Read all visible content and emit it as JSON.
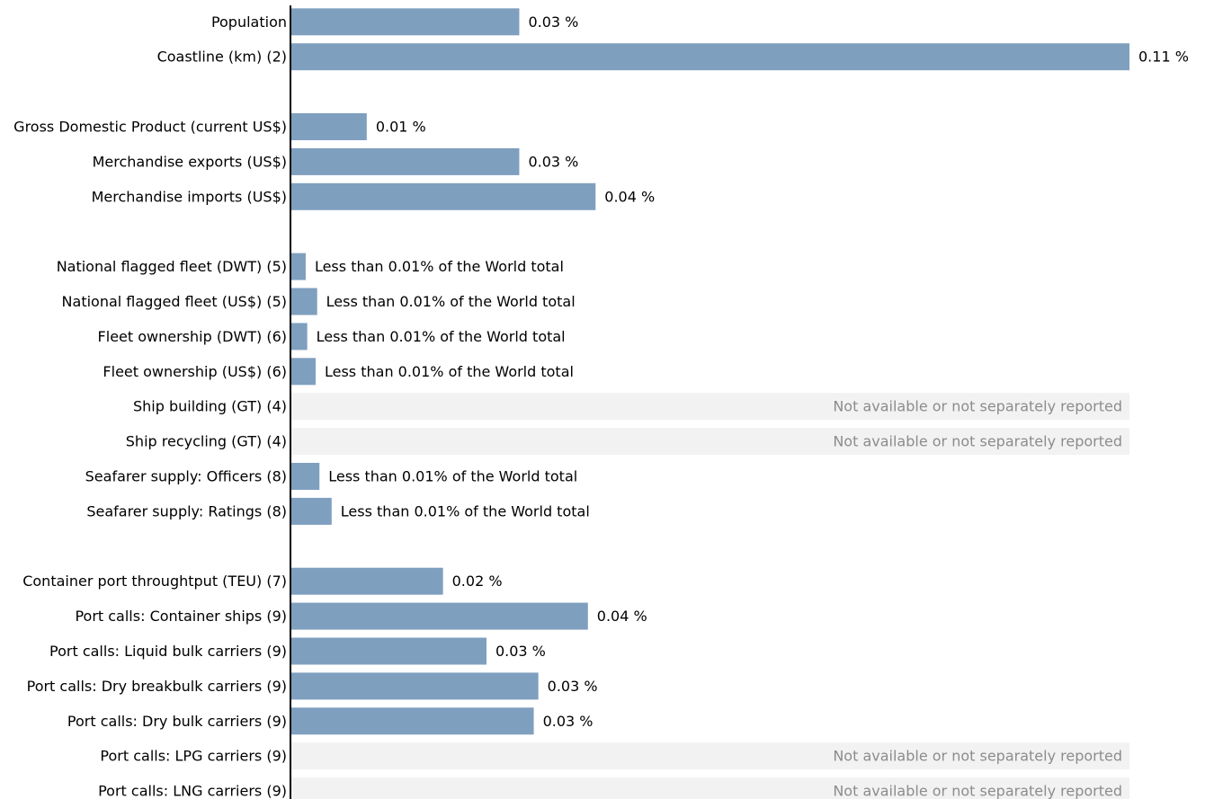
{
  "chart_data": {
    "type": "bar",
    "orientation": "horizontal",
    "title": "",
    "xlabel": "",
    "ylabel": "",
    "xlim": [
      0,
      0.11
    ],
    "grid": false,
    "legend": "none",
    "colors": {
      "bar": "#7f9fbf",
      "na_band": "#f2f2f2",
      "na_text": "#8c8c8c",
      "axis": "#000000"
    },
    "rows": [
      {
        "category": "Population",
        "value": 0.03,
        "label": "0.03 %",
        "status": "value",
        "group": 0
      },
      {
        "category": "Coastline (km) (2)",
        "value": 0.11,
        "label": "0.11 %",
        "status": "value",
        "group": 0
      },
      {
        "category": "Gross Domestic Product (current US$)",
        "value": 0.01,
        "label": "0.01 %",
        "status": "value",
        "group": 1
      },
      {
        "category": "Merchandise exports (US$)",
        "value": 0.03,
        "label": "0.03 %",
        "status": "value",
        "group": 1
      },
      {
        "category": "Merchandise imports (US$)",
        "value": 0.04,
        "label": "0.04 %",
        "status": "value",
        "group": 1
      },
      {
        "category": "National flagged fleet (DWT) (5)",
        "value": 0.002,
        "label": "Less than 0.01% of the World total",
        "status": "lt",
        "group": 2
      },
      {
        "category": "National flagged fleet (US$) (5)",
        "value": 0.0035,
        "label": "Less than 0.01% of the World total",
        "status": "lt",
        "group": 2
      },
      {
        "category": "Fleet ownership (DWT) (6)",
        "value": 0.0022,
        "label": "Less than 0.01% of the World total",
        "status": "lt",
        "group": 2
      },
      {
        "category": "Fleet ownership (US$) (6)",
        "value": 0.0033,
        "label": "Less than 0.01% of the World total",
        "status": "lt",
        "group": 2
      },
      {
        "category": "Ship building (GT) (4)",
        "value": null,
        "label": "Not available or not separately reported",
        "status": "na",
        "group": 2
      },
      {
        "category": "Ship recycling (GT) (4)",
        "value": null,
        "label": "Not available or not separately reported",
        "status": "na",
        "group": 2
      },
      {
        "category": "Seafarer supply: Officers (8)",
        "value": 0.0038,
        "label": "Less than 0.01% of the World total",
        "status": "lt",
        "group": 2
      },
      {
        "category": "Seafarer supply: Ratings (8)",
        "value": 0.0054,
        "label": "Less than 0.01% of the World total",
        "status": "lt",
        "group": 2
      },
      {
        "category": "Container port throughtput (TEU) (7)",
        "value": 0.02,
        "label": "0.02 %",
        "status": "value",
        "group": 3
      },
      {
        "category": "Port calls: Container ships (9)",
        "value": 0.039,
        "label": "0.04 %",
        "status": "value",
        "group": 3
      },
      {
        "category": "Port calls: Liquid bulk carriers (9)",
        "value": 0.0257,
        "label": "0.03 %",
        "status": "value",
        "group": 3
      },
      {
        "category": "Port calls: Dry breakbulk carriers (9)",
        "value": 0.0325,
        "label": "0.03 %",
        "status": "value",
        "group": 3
      },
      {
        "category": "Port calls: Dry bulk carriers (9)",
        "value": 0.0319,
        "label": "0.03 %",
        "status": "value",
        "group": 3
      },
      {
        "category": "Port calls: LPG carriers (9)",
        "value": null,
        "label": "Not available or not separately reported",
        "status": "na",
        "group": 3
      },
      {
        "category": "Port calls: LNG carriers (9)",
        "value": null,
        "label": "Not available or not separately reported",
        "status": "na",
        "group": 3
      }
    ]
  }
}
